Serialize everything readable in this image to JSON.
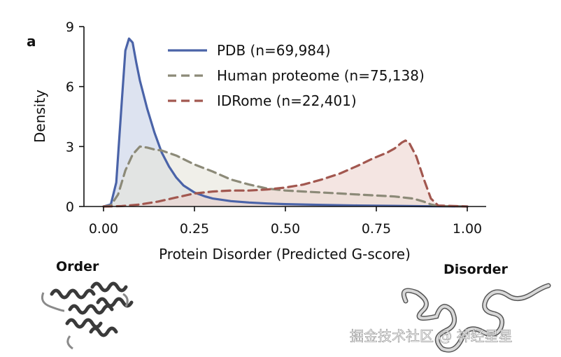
{
  "panel_label": "a",
  "chart_data": {
    "type": "area",
    "xlabel": "Protein Disorder (Predicted G-score)",
    "ylabel": "Density",
    "xlim": [
      -0.05,
      1.05
    ],
    "ylim": [
      0,
      9
    ],
    "xticks": [
      "0.00",
      "0.25",
      "0.50",
      "0.75",
      "1.00"
    ],
    "yticks": [
      "0",
      "3",
      "6",
      "9"
    ],
    "legend_position": "top-center",
    "series": [
      {
        "name": "PDB (n=69,984)",
        "line_style": "solid",
        "color": "#4a63a8",
        "fill": "#c6d0e6",
        "x": [
          0.0,
          0.02,
          0.035,
          0.05,
          0.06,
          0.07,
          0.08,
          0.09,
          0.1,
          0.12,
          0.14,
          0.16,
          0.18,
          0.2,
          0.22,
          0.25,
          0.28,
          0.3,
          0.35,
          0.4,
          0.45,
          0.5,
          0.6,
          0.7,
          0.8,
          0.9,
          1.0
        ],
        "y": [
          0.0,
          0.1,
          1.2,
          5.2,
          7.8,
          8.4,
          8.2,
          7.2,
          6.3,
          4.9,
          3.7,
          2.7,
          2.0,
          1.45,
          1.05,
          0.7,
          0.5,
          0.4,
          0.27,
          0.2,
          0.15,
          0.12,
          0.08,
          0.05,
          0.03,
          0.01,
          0.0
        ]
      },
      {
        "name": "Human proteome (n=75,138)",
        "line_style": "dashed",
        "color": "#8c8a78",
        "fill": "#e6e4db",
        "x": [
          0.0,
          0.02,
          0.04,
          0.06,
          0.08,
          0.1,
          0.12,
          0.14,
          0.16,
          0.2,
          0.25,
          0.3,
          0.35,
          0.4,
          0.45,
          0.5,
          0.55,
          0.6,
          0.65,
          0.7,
          0.75,
          0.8,
          0.85,
          0.88,
          0.9,
          0.92,
          1.0
        ],
        "y": [
          0.0,
          0.05,
          0.6,
          1.8,
          2.6,
          3.0,
          2.95,
          2.85,
          2.8,
          2.55,
          2.1,
          1.75,
          1.35,
          1.1,
          0.9,
          0.8,
          0.75,
          0.7,
          0.65,
          0.6,
          0.55,
          0.5,
          0.4,
          0.25,
          0.1,
          0.02,
          0.0
        ]
      },
      {
        "name": "IDRome (n=22,401)",
        "line_style": "dashed",
        "color": "#a2574f",
        "fill": "#ecd3cf",
        "x": [
          0.0,
          0.05,
          0.1,
          0.15,
          0.2,
          0.25,
          0.3,
          0.35,
          0.4,
          0.45,
          0.5,
          0.55,
          0.6,
          0.65,
          0.7,
          0.74,
          0.76,
          0.78,
          0.8,
          0.82,
          0.83,
          0.84,
          0.86,
          0.88,
          0.9,
          0.92,
          1.0
        ],
        "y": [
          0.0,
          0.02,
          0.1,
          0.25,
          0.45,
          0.65,
          0.75,
          0.8,
          0.8,
          0.85,
          0.95,
          1.1,
          1.35,
          1.65,
          2.05,
          2.4,
          2.55,
          2.7,
          2.9,
          3.2,
          3.3,
          3.2,
          2.5,
          1.4,
          0.4,
          0.05,
          0.0
        ]
      }
    ]
  },
  "labels": {
    "order": "Order",
    "disorder": "Disorder"
  },
  "watermark": "掘金技术社区 @ 神经星星"
}
